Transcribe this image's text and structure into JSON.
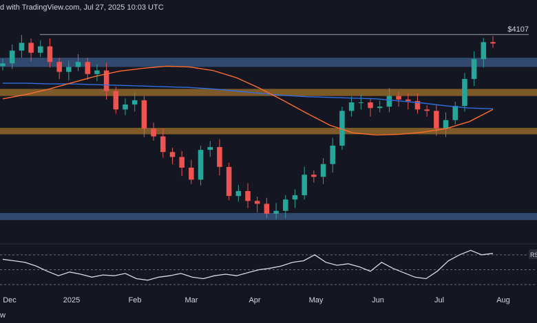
{
  "header": {
    "text": "d with TradingView.com, Jul 27, 2025 10:03 UTC"
  },
  "footer": {
    "text": "w"
  },
  "colors": {
    "background": "#141722",
    "bull": "#26a69a",
    "bear": "#ef5350",
    "ma_fast": "#ff6d2e",
    "ma_slow": "#2f6fe0",
    "resistance_zone": "#3b5a8a",
    "support_zone": "#9a6b2c",
    "rsi_line": "#d8dce6",
    "grid": "#2a2e39"
  },
  "chart_data": [
    {
      "type": "candlestick",
      "title": "",
      "x_tick_labels": [
        "Dec",
        "2025",
        "Feb",
        "Mar",
        "Apr",
        "May",
        "Jun",
        "Jul",
        "Aug"
      ],
      "price_annotation": "$4107",
      "horizontal_line": 4107,
      "zones": [
        {
          "name": "blue-zone-upper",
          "from": 3650,
          "to": 3780
        },
        {
          "name": "orange-zone-upper",
          "from": 3240,
          "to": 3340
        },
        {
          "name": "orange-zone-lower",
          "from": 2700,
          "to": 2790
        },
        {
          "name": "blue-zone-lower",
          "from": 1490,
          "to": 1590
        }
      ],
      "ma_fast_values": [
        3200,
        3260,
        3340,
        3430,
        3520,
        3590,
        3630,
        3660,
        3650,
        3600,
        3500,
        3350,
        3180,
        3000,
        2830,
        2720,
        2690,
        2700,
        2730,
        2780,
        2880,
        3050
      ],
      "ma_slow_values": [
        3420,
        3420,
        3410,
        3410,
        3400,
        3390,
        3380,
        3370,
        3360,
        3340,
        3310,
        3280,
        3250,
        3230,
        3220,
        3210,
        3200,
        3170,
        3140,
        3100,
        3070,
        3060
      ],
      "ylim": [
        1250,
        4400
      ],
      "close_values": [
        3700,
        3880,
        3990,
        3850,
        3940,
        3720,
        3580,
        3650,
        3720,
        3550,
        3600,
        3310,
        3050,
        3120,
        3180,
        2780,
        2670,
        2450,
        2380,
        2230,
        2060,
        2480,
        2520,
        2240,
        1830,
        1900,
        1760,
        1720,
        1580,
        1620,
        1780,
        1840,
        2130,
        2100,
        2280,
        2540,
        3030,
        3150,
        3150,
        3070,
        3090,
        3240,
        3190,
        3170,
        3050,
        3030,
        2780,
        2900,
        3100,
        3480,
        3760,
        4000,
        3980
      ]
    },
    {
      "type": "line",
      "title": "",
      "series": [
        {
          "name": "RSI",
          "values": [
            64,
            62,
            60,
            55,
            48,
            42,
            47,
            44,
            40,
            43,
            42,
            45,
            38,
            36,
            40,
            42,
            45,
            40,
            38,
            42,
            44,
            42,
            46,
            50,
            52,
            55,
            60,
            62,
            70,
            60,
            56,
            58,
            54,
            48,
            60,
            52,
            46,
            40,
            38,
            48,
            62,
            70,
            76,
            70,
            72
          ]
        }
      ],
      "rsi_label": "RSI",
      "ylim": [
        20,
        80
      ]
    }
  ]
}
